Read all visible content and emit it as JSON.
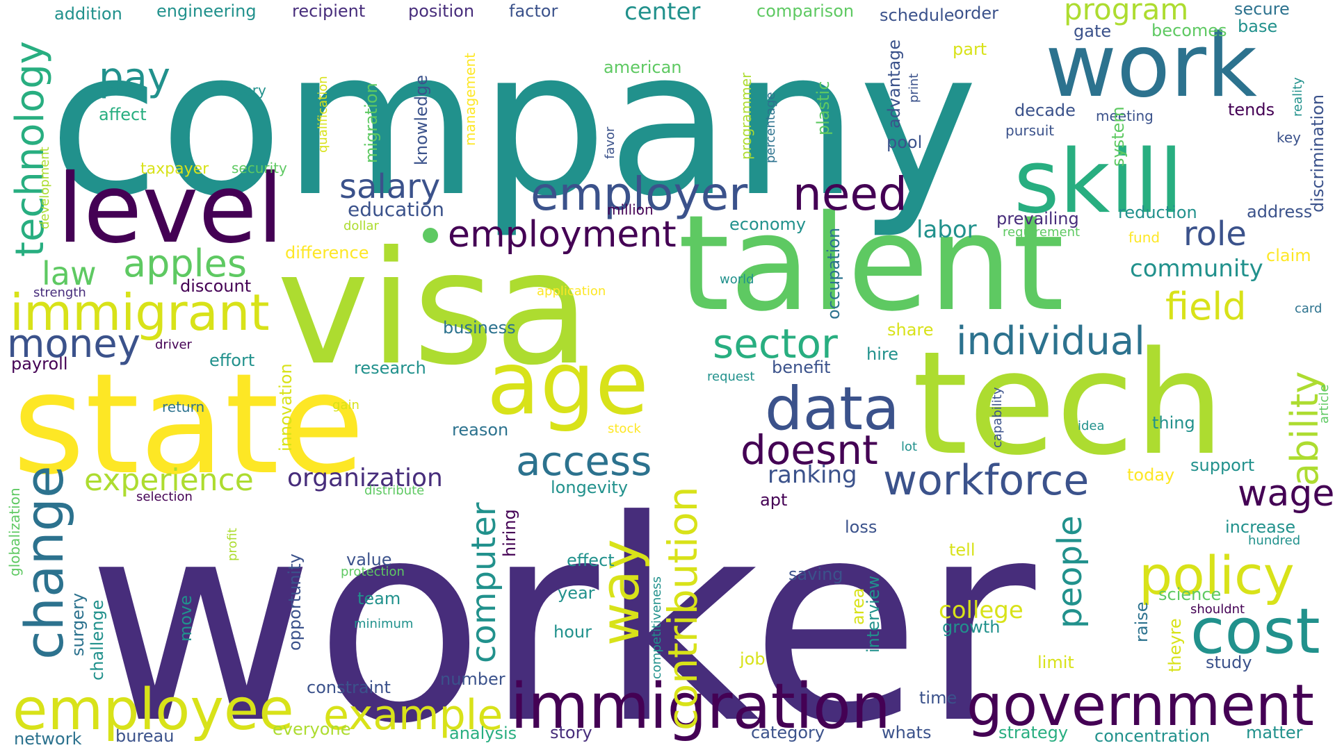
{
  "palette": {
    "c1": "#472d7b",
    "c2": "#3b528b",
    "c3": "#2c728e",
    "c4": "#21918c",
    "c5": "#28ae80",
    "c6": "#5ec962",
    "c7": "#addc30",
    "c8": "#d8e219",
    "c9": "#fde725",
    "c10": "#440154"
  },
  "words": [
    {
      "text": "company",
      "color": "c4"
    },
    {
      "text": "worker",
      "color": "c1"
    },
    {
      "text": "visa",
      "color": "c7"
    },
    {
      "text": "talent",
      "color": "c6"
    },
    {
      "text": "tech",
      "color": "c7"
    },
    {
      "text": "state",
      "color": "c9"
    },
    {
      "text": "work",
      "color": "c3"
    },
    {
      "text": "skill",
      "color": "c5"
    },
    {
      "text": "level",
      "color": "c10"
    },
    {
      "text": "age",
      "color": "c8"
    },
    {
      "text": "immigration",
      "color": "c10"
    },
    {
      "text": "government",
      "color": "c10"
    },
    {
      "text": "employee",
      "color": "c8"
    },
    {
      "text": "employer",
      "color": "c2"
    },
    {
      "text": "need",
      "color": "c10"
    },
    {
      "text": "data",
      "color": "c2"
    },
    {
      "text": "cost",
      "color": "c4"
    },
    {
      "text": "employment",
      "color": "c10"
    },
    {
      "text": "immigrant",
      "color": "c8"
    },
    {
      "text": "policy",
      "color": "c8"
    },
    {
      "text": "technology",
      "color": "c5"
    },
    {
      "text": "change",
      "color": "c3"
    },
    {
      "text": "example",
      "color": "c8"
    },
    {
      "text": "way",
      "color": "c8"
    },
    {
      "text": "contribution",
      "color": "c8"
    },
    {
      "text": "workforce",
      "color": "c2"
    },
    {
      "text": "access",
      "color": "c3"
    },
    {
      "text": "sector",
      "color": "c5"
    },
    {
      "text": "individual",
      "color": "c3"
    },
    {
      "text": "money",
      "color": "c2"
    },
    {
      "text": "apples",
      "color": "c6"
    },
    {
      "text": "salary",
      "color": "c2"
    },
    {
      "text": "doesnt",
      "color": "c10"
    },
    {
      "text": "computer",
      "color": "c4"
    },
    {
      "text": "people",
      "color": "c4"
    },
    {
      "text": "role",
      "color": "c2"
    },
    {
      "text": "field",
      "color": "c8"
    },
    {
      "text": "ability",
      "color": "c7"
    },
    {
      "text": "wage",
      "color": "c10"
    },
    {
      "text": "pay",
      "color": "c4"
    },
    {
      "text": "law",
      "color": "c6"
    },
    {
      "text": "program",
      "color": "c7"
    },
    {
      "text": "experience",
      "color": "c7"
    },
    {
      "text": "organization",
      "color": "c1"
    },
    {
      "text": "college",
      "color": "c8"
    },
    {
      "text": "ranking",
      "color": "c2"
    },
    {
      "text": "labor",
      "color": "c4"
    },
    {
      "text": "community",
      "color": "c4"
    },
    {
      "text": "center",
      "color": "c4"
    },
    {
      "text": "education",
      "color": "c2"
    },
    {
      "text": "addition",
      "color": "c4"
    },
    {
      "text": "engineering",
      "color": "c4"
    },
    {
      "text": "recipient",
      "color": "c1"
    },
    {
      "text": "position",
      "color": "c1"
    },
    {
      "text": "factor",
      "color": "c2"
    },
    {
      "text": "comparison",
      "color": "c6"
    },
    {
      "text": "schedule",
      "color": "c2"
    },
    {
      "text": "order",
      "color": "c2"
    },
    {
      "text": "secure",
      "color": "c3"
    },
    {
      "text": "base",
      "color": "c4"
    },
    {
      "text": "gate",
      "color": "c2"
    },
    {
      "text": "becomes",
      "color": "c6"
    },
    {
      "text": "part",
      "color": "c8"
    },
    {
      "text": "american",
      "color": "c6"
    },
    {
      "text": "lottery",
      "color": "c4"
    },
    {
      "text": "affect",
      "color": "c5"
    },
    {
      "text": "decade",
      "color": "c2"
    },
    {
      "text": "meeting",
      "color": "c2"
    },
    {
      "text": "tends",
      "color": "c10"
    },
    {
      "text": "pursuit",
      "color": "c2"
    },
    {
      "text": "key",
      "color": "c2"
    },
    {
      "text": "pool",
      "color": "c2"
    },
    {
      "text": "taxpayer",
      "color": "c8"
    },
    {
      "text": "security",
      "color": "c6"
    },
    {
      "text": "million",
      "color": "c10"
    },
    {
      "text": "dollar",
      "color": "c7"
    },
    {
      "text": "economy",
      "color": "c4"
    },
    {
      "text": "prevailing",
      "color": "c1"
    },
    {
      "text": "reduction",
      "color": "c4"
    },
    {
      "text": "address",
      "color": "c2"
    },
    {
      "text": "requirement",
      "color": "c6"
    },
    {
      "text": "fund",
      "color": "c9"
    },
    {
      "text": "claim",
      "color": "c9"
    },
    {
      "text": "difference",
      "color": "c9"
    },
    {
      "text": "discount",
      "color": "c10"
    },
    {
      "text": "strength",
      "color": "c1"
    },
    {
      "text": "application",
      "color": "c9"
    },
    {
      "text": "world",
      "color": "c4"
    },
    {
      "text": "card",
      "color": "c3"
    },
    {
      "text": "share",
      "color": "c8"
    },
    {
      "text": "hire",
      "color": "c4"
    },
    {
      "text": "business",
      "color": "c3"
    },
    {
      "text": "driver",
      "color": "c10"
    },
    {
      "text": "effort",
      "color": "c4"
    },
    {
      "text": "payroll",
      "color": "c10"
    },
    {
      "text": "research",
      "color": "c4"
    },
    {
      "text": "request",
      "color": "c4"
    },
    {
      "text": "benefit",
      "color": "c2"
    },
    {
      "text": "return",
      "color": "c3"
    },
    {
      "text": "gain",
      "color": "c8"
    },
    {
      "text": "reason",
      "color": "c3"
    },
    {
      "text": "stock",
      "color": "c9"
    },
    {
      "text": "lot",
      "color": "c4"
    },
    {
      "text": "idea",
      "color": "c4"
    },
    {
      "text": "thing",
      "color": "c4"
    },
    {
      "text": "today",
      "color": "c9"
    },
    {
      "text": "support",
      "color": "c4"
    },
    {
      "text": "selection",
      "color": "c10"
    },
    {
      "text": "distribute",
      "color": "c6"
    },
    {
      "text": "longevity",
      "color": "c4"
    },
    {
      "text": "apt",
      "color": "c10"
    },
    {
      "text": "increase",
      "color": "c4"
    },
    {
      "text": "hundred",
      "color": "c4"
    },
    {
      "text": "loss",
      "color": "c2"
    },
    {
      "text": "value",
      "color": "c2"
    },
    {
      "text": "protection",
      "color": "c6"
    },
    {
      "text": "team",
      "color": "c4"
    },
    {
      "text": "minimum",
      "color": "c4"
    },
    {
      "text": "effect",
      "color": "c4"
    },
    {
      "text": "year",
      "color": "c4"
    },
    {
      "text": "hour",
      "color": "c4"
    },
    {
      "text": "tell",
      "color": "c8"
    },
    {
      "text": "saving",
      "color": "c2"
    },
    {
      "text": "science",
      "color": "c6"
    },
    {
      "text": "shouldnt",
      "color": "c10"
    },
    {
      "text": "growth",
      "color": "c4"
    },
    {
      "text": "study",
      "color": "c2"
    },
    {
      "text": "limit",
      "color": "c8"
    },
    {
      "text": "job",
      "color": "c8"
    },
    {
      "text": "constraint",
      "color": "c2"
    },
    {
      "text": "number",
      "color": "c2"
    },
    {
      "text": "time",
      "color": "c2"
    },
    {
      "text": "network",
      "color": "c3"
    },
    {
      "text": "bureau",
      "color": "c2"
    },
    {
      "text": "everyone",
      "color": "c7"
    },
    {
      "text": "analysis",
      "color": "c5"
    },
    {
      "text": "story",
      "color": "c1"
    },
    {
      "text": "category",
      "color": "c2"
    },
    {
      "text": "whats",
      "color": "c2"
    },
    {
      "text": "strategy",
      "color": "c5"
    },
    {
      "text": "concentration",
      "color": "c4"
    },
    {
      "text": "matter",
      "color": "c4"
    },
    {
      "text": "development",
      "color": "c7"
    },
    {
      "text": "qualification",
      "color": "c8"
    },
    {
      "text": "migration",
      "color": "c6"
    },
    {
      "text": "knowledge",
      "color": "c2"
    },
    {
      "text": "management",
      "color": "c9"
    },
    {
      "text": "programmer",
      "color": "c7"
    },
    {
      "text": "percentage",
      "color": "c3"
    },
    {
      "text": "favor",
      "color": "c2"
    },
    {
      "text": "plastic",
      "color": "c6"
    },
    {
      "text": "advantage",
      "color": "c2"
    },
    {
      "text": "print",
      "color": "c2"
    },
    {
      "text": "system",
      "color": "c6"
    },
    {
      "text": "discrimination",
      "color": "c2"
    },
    {
      "text": "reality",
      "color": "c4"
    },
    {
      "text": "occupation",
      "color": "c3"
    },
    {
      "text": "innovation",
      "color": "c8"
    },
    {
      "text": "globalization",
      "color": "c6"
    },
    {
      "text": "profit",
      "color": "c7"
    },
    {
      "text": "surgery",
      "color": "c3"
    },
    {
      "text": "challenge",
      "color": "c4"
    },
    {
      "text": "move",
      "color": "c4"
    },
    {
      "text": "opportunity",
      "color": "c2"
    },
    {
      "text": "hiring",
      "color": "c10"
    },
    {
      "text": "competitiveness",
      "color": "c4"
    },
    {
      "text": "area",
      "color": "c8"
    },
    {
      "text": "interview",
      "color": "c4"
    },
    {
      "text": "raise",
      "color": "c3"
    },
    {
      "text": "theyre",
      "color": "c8"
    },
    {
      "text": "capability",
      "color": "c2"
    },
    {
      "text": "article",
      "color": "c6"
    }
  ]
}
